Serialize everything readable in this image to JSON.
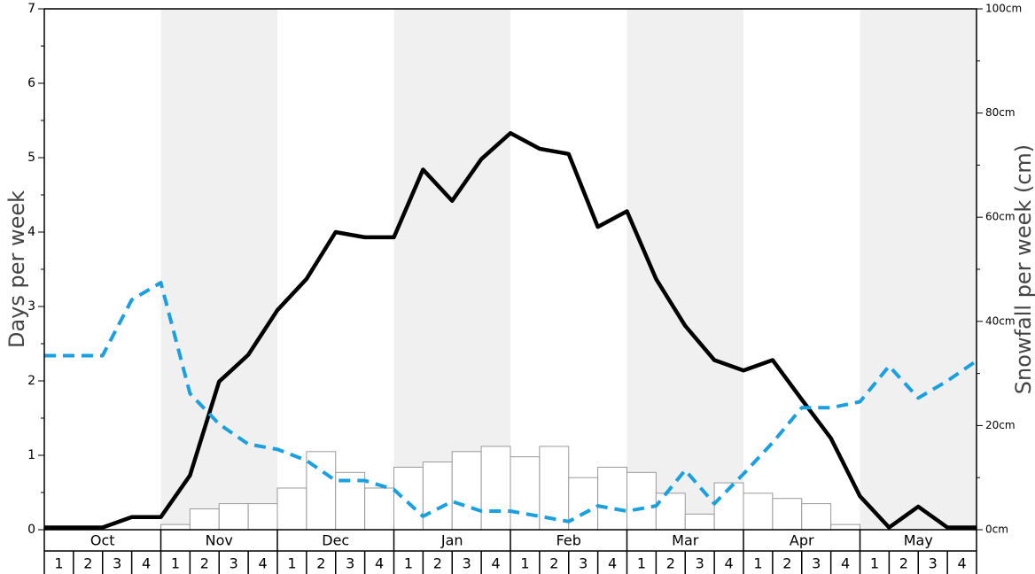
{
  "chart_data": {
    "type": "bar+line",
    "months": [
      "Oct",
      "Nov",
      "Dec",
      "Jan",
      "Feb",
      "Mar",
      "Apr",
      "May"
    ],
    "weeks": [
      "1",
      "2",
      "3",
      "4"
    ],
    "ylabel_left": "Days per week",
    "ylabel_right": "Snowfall per week (cm)",
    "ylim_left": [
      0,
      7
    ],
    "yticks_left": [
      "0",
      "1",
      "2",
      "3",
      "4",
      "5",
      "6",
      "7"
    ],
    "ylim_right": [
      0,
      100
    ],
    "yticks_right": [
      "0cm",
      "20cm",
      "40cm",
      "60cm",
      "80cm",
      "100cm"
    ],
    "shaded_months": [
      "Nov",
      "Jan",
      "Mar",
      "May"
    ],
    "colors": {
      "solid_line": "#000000",
      "dashed_line": "#1aa0e0",
      "bars": "#ffffff",
      "bar_stroke": "#999999",
      "shade": "#f0f0f0"
    },
    "snowfall_bars_cm": [
      0,
      0,
      0,
      0,
      1,
      4,
      5,
      5,
      8,
      15,
      11,
      8,
      12,
      13,
      15,
      16,
      14,
      16,
      10,
      12,
      11,
      7,
      3,
      9,
      7,
      6,
      5,
      1,
      0,
      0,
      0,
      0
    ],
    "series": [
      {
        "style": "solid",
        "axis": "left",
        "values": [
          0.03,
          0.03,
          0.03,
          0.17,
          0.17,
          0.73,
          1.99,
          2.35,
          2.95,
          3.37,
          4.0,
          3.93,
          3.93,
          4.84,
          4.42,
          4.98,
          5.33,
          5.12,
          5.05,
          4.07,
          4.28,
          3.37,
          2.74,
          2.28,
          2.14,
          2.28,
          1.75,
          1.23,
          0.45,
          0.03,
          0.31,
          0.03,
          0.03
        ]
      },
      {
        "style": "dashed",
        "axis": "left",
        "values": [
          2.34,
          2.34,
          2.34,
          3.09,
          3.32,
          1.83,
          1.42,
          1.15,
          1.08,
          0.93,
          0.66,
          0.66,
          0.54,
          0.18,
          0.38,
          0.25,
          0.25,
          0.18,
          0.11,
          0.32,
          0.25,
          0.32,
          0.8,
          0.35,
          0.75,
          1.17,
          1.64,
          1.64,
          1.72,
          2.2,
          1.77,
          2.0,
          2.27
        ]
      }
    ]
  }
}
